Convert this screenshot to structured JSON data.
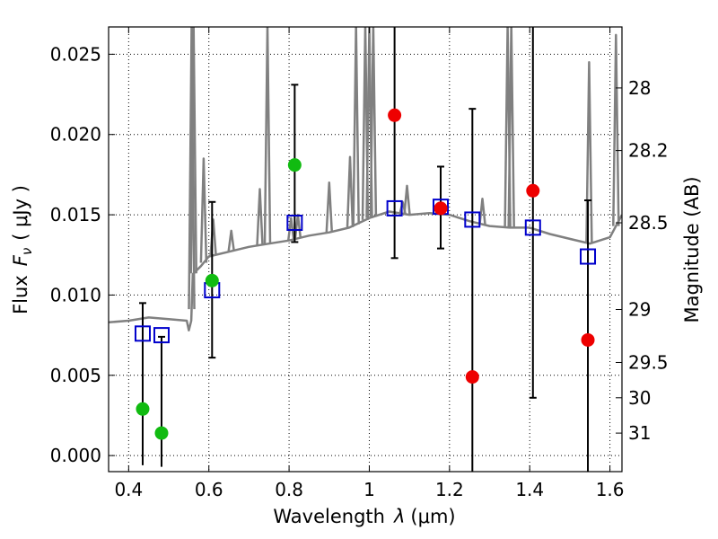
{
  "chart_data": {
    "type": "scatter",
    "xlabel_text": "Wavelength",
    "xlabel_symbol": "λ",
    "xlabel_unit": "(μm)",
    "ylabel_text": "Flux",
    "ylabel_symbol": "F",
    "ylabel_sub": "ν",
    "ylabel_unit": "( μJy )",
    "ylabel_right": "Magnitude (AB)",
    "xlim": [
      0.35,
      1.63
    ],
    "ylim": [
      -0.001,
      0.0267
    ],
    "xticks": [
      0.4,
      0.6,
      0.8,
      1.0,
      1.2,
      1.4,
      1.6
    ],
    "xtick_labels": [
      "0.4",
      "0.6",
      "0.8",
      "1",
      "1.2",
      "1.4",
      "1.6"
    ],
    "yticks": [
      0.0,
      0.005,
      0.01,
      0.015,
      0.02,
      0.025
    ],
    "ytick_labels": [
      "0.000",
      "0.005",
      "0.010",
      "0.015",
      "0.020",
      "0.025"
    ],
    "right_ticks": [
      {
        "label": "28",
        "flux": 0.0229
      },
      {
        "label": "28.2",
        "flux": 0.019
      },
      {
        "label": "28.5",
        "flux": 0.0145
      },
      {
        "label": "29",
        "flux": 0.0091
      },
      {
        "label": "29.5",
        "flux": 0.0058
      },
      {
        "label": "30",
        "flux": 0.0036
      },
      {
        "label": "31",
        "flux": 0.0014
      }
    ],
    "grid": true,
    "colors": {
      "template": "#808080",
      "model": "#0000cc",
      "detected": "#11bb11",
      "low_snr": "#ee0000",
      "errorbar": "#000000"
    },
    "model_points": [
      {
        "x": 0.435,
        "y": 0.0076,
        "err_lo": 0.0082,
        "err_hi": 0.0019
      },
      {
        "x": 0.482,
        "y": 0.0075,
        "err_lo": 0.0082,
        "err_hi": -0.0001
      },
      {
        "x": 0.608,
        "y": 0.0103,
        "err_lo": 0.0042,
        "err_hi": 0.0055
      },
      {
        "x": 0.814,
        "y": 0.0145,
        "err_lo": 0.0012,
        "err_hi": 0.0086
      },
      {
        "x": 1.063,
        "y": 0.0154,
        "err_lo": 0.0031,
        "err_hi": 0.0116
      },
      {
        "x": 1.178,
        "y": 0.0155,
        "err_lo": 0.0026,
        "err_hi": 0.0025
      },
      {
        "x": 1.257,
        "y": 0.0147,
        "err_lo": 0.0157,
        "err_hi": 0.0069
      },
      {
        "x": 1.408,
        "y": 0.0142,
        "err_lo": 0.0106,
        "err_hi": 0.0125
      },
      {
        "x": 1.545,
        "y": 0.0124,
        "err_lo": 0.0134,
        "err_hi": 0.0035
      }
    ],
    "errorbar_caps": [
      {
        "x": 0.435,
        "y": 0.0095
      },
      {
        "x": 0.482,
        "y": 0.0074
      },
      {
        "x": 0.608,
        "y": 0.0158
      },
      {
        "x": 0.608,
        "y": 0.0061
      },
      {
        "x": 0.814,
        "y": 0.0231
      },
      {
        "x": 0.814,
        "y": 0.0133
      },
      {
        "x": 1.063,
        "y": 0.0123
      },
      {
        "x": 1.178,
        "y": 0.018
      },
      {
        "x": 1.178,
        "y": 0.0129
      },
      {
        "x": 1.257,
        "y": 0.0216
      },
      {
        "x": 1.408,
        "y": 0.0036
      },
      {
        "x": 1.545,
        "y": 0.0159
      }
    ],
    "detected_points": [
      {
        "x": 0.435,
        "y": 0.0029
      },
      {
        "x": 0.482,
        "y": 0.0014
      },
      {
        "x": 0.608,
        "y": 0.0109
      },
      {
        "x": 0.814,
        "y": 0.0181
      }
    ],
    "low_snr_points": [
      {
        "x": 1.063,
        "y": 0.0212
      },
      {
        "x": 1.178,
        "y": 0.0154
      },
      {
        "x": 1.257,
        "y": 0.0049
      },
      {
        "x": 1.408,
        "y": 0.0165
      },
      {
        "x": 1.545,
        "y": 0.0072
      }
    ],
    "template_spectrum": {
      "x": [
        0.35,
        0.4,
        0.45,
        0.5,
        0.545,
        0.55,
        0.556,
        0.56,
        0.58,
        0.6,
        0.65,
        0.7,
        0.75,
        0.8,
        0.85,
        0.9,
        0.95,
        1.0,
        1.05,
        1.1,
        1.15,
        1.2,
        1.25,
        1.3,
        1.35,
        1.4,
        1.45,
        1.5,
        1.55,
        1.6,
        1.63
      ],
      "y": [
        0.0083,
        0.0084,
        0.0086,
        0.0085,
        0.0084,
        0.0078,
        0.0084,
        0.0113,
        0.0118,
        0.0124,
        0.0127,
        0.013,
        0.0132,
        0.0134,
        0.0137,
        0.0139,
        0.0142,
        0.0148,
        0.0152,
        0.015,
        0.0151,
        0.015,
        0.0146,
        0.0143,
        0.0142,
        0.0142,
        0.0138,
        0.0135,
        0.0132,
        0.0136,
        0.015
      ]
    },
    "emission_lines": [
      {
        "x": 0.557,
        "peak": 0.0268
      },
      {
        "x": 0.562,
        "peak": 0.0268
      },
      {
        "x": 0.587,
        "peak": 0.0185
      },
      {
        "x": 0.611,
        "peak": 0.0147
      },
      {
        "x": 0.656,
        "peak": 0.014
      },
      {
        "x": 0.727,
        "peak": 0.0166
      },
      {
        "x": 0.746,
        "peak": 0.0268
      },
      {
        "x": 0.805,
        "peak": 0.0148
      },
      {
        "x": 0.822,
        "peak": 0.015
      },
      {
        "x": 0.9,
        "peak": 0.017
      },
      {
        "x": 0.952,
        "peak": 0.0186
      },
      {
        "x": 0.967,
        "peak": 0.0268
      },
      {
        "x": 0.99,
        "peak": 0.0268
      },
      {
        "x": 1.0,
        "peak": 0.0268
      },
      {
        "x": 1.01,
        "peak": 0.0268
      },
      {
        "x": 1.083,
        "peak": 0.0158
      },
      {
        "x": 1.094,
        "peak": 0.0168
      },
      {
        "x": 1.282,
        "peak": 0.016
      },
      {
        "x": 1.345,
        "peak": 0.0268
      },
      {
        "x": 1.354,
        "peak": 0.0268
      },
      {
        "x": 1.548,
        "peak": 0.0245
      },
      {
        "x": 1.615,
        "peak": 0.0262
      }
    ]
  }
}
